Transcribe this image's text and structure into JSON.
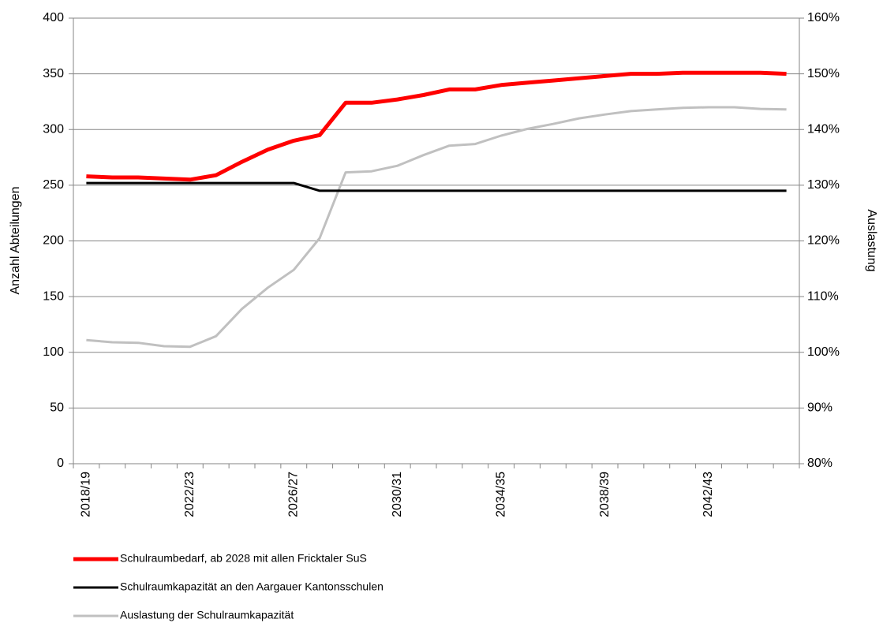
{
  "chart_data": {
    "type": "line",
    "ylabel": "Anzahl Abteilungen",
    "y2label": "Auslastung",
    "categories": [
      "2018/19",
      null,
      null,
      null,
      "2022/23",
      null,
      null,
      null,
      "2026/27",
      null,
      null,
      null,
      "2030/31",
      null,
      null,
      null,
      "2034/35",
      null,
      null,
      null,
      "2038/39",
      null,
      null,
      null,
      "2042/43",
      null,
      null,
      null
    ],
    "series": [
      {
        "name": "Schulraumbedarf, ab 2028 mit allen Fricktaler SuS",
        "color": "#ff0000",
        "values": [
          258,
          257,
          257,
          256,
          255,
          259,
          271,
          282,
          290,
          295,
          324,
          324,
          327,
          331,
          336,
          336,
          340,
          342,
          344,
          346,
          348,
          350,
          350,
          351,
          351,
          351,
          351,
          350
        ]
      },
      {
        "name": "Schulraumkapazität an den Aargauer Kantonsschulen",
        "color": "#000000",
        "values": [
          252,
          252,
          252,
          252,
          252,
          252,
          252,
          252,
          252,
          245,
          245,
          245,
          245,
          245,
          245,
          245,
          245,
          245,
          245,
          245,
          245,
          245,
          245,
          245,
          245,
          245,
          245,
          245
        ]
      },
      {
        "name": "Auslastung der Schulraumkapazität",
        "color": "#c0c0c0",
        "axis": "y2",
        "values": [
          102.2,
          101.8,
          101.7,
          101.1,
          101.0,
          102.9,
          107.8,
          111.6,
          114.8,
          120.5,
          132.3,
          132.5,
          133.5,
          135.4,
          137.1,
          137.4,
          138.9,
          140.1,
          141.0,
          142.0,
          142.7,
          143.3,
          143.6,
          143.9,
          144.0,
          144.0,
          143.7,
          143.6
        ]
      }
    ],
    "ylim": [
      0,
      400
    ],
    "yticks": [
      0,
      50,
      100,
      150,
      200,
      250,
      300,
      350,
      400
    ],
    "y2lim": [
      80,
      160
    ],
    "y2ticks": [
      {
        "value": 80,
        "label": "80%"
      },
      {
        "value": 90,
        "label": "90%"
      },
      {
        "value": 100,
        "label": "100%"
      },
      {
        "value": 110,
        "label": "110%"
      },
      {
        "value": 120,
        "label": "120%"
      },
      {
        "value": 130,
        "label": "130%"
      },
      {
        "value": 140,
        "label": "140%"
      },
      {
        "value": 150,
        "label": "150%"
      },
      {
        "value": 160,
        "label": "160%"
      }
    ],
    "grid": true
  }
}
